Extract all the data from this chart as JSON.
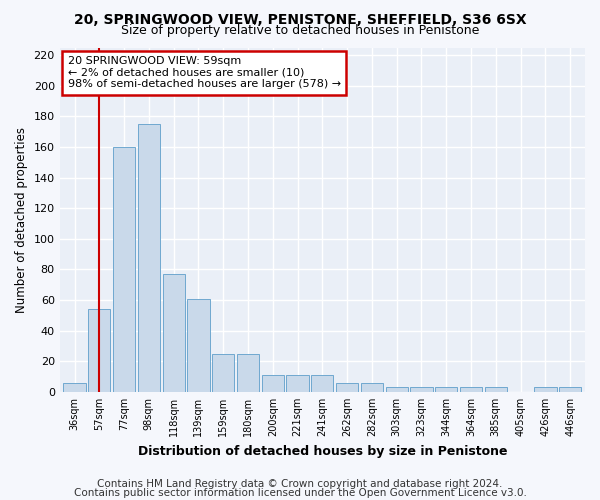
{
  "title": "20, SPRINGWOOD VIEW, PENISTONE, SHEFFIELD, S36 6SX",
  "subtitle": "Size of property relative to detached houses in Penistone",
  "xlabel": "Distribution of detached houses by size in Penistone",
  "ylabel": "Number of detached properties",
  "bar_values": [
    6,
    54,
    160,
    175,
    77,
    61,
    25,
    25,
    11,
    11,
    11,
    6,
    6,
    3,
    3,
    3,
    3,
    3,
    0,
    3,
    3
  ],
  "bar_labels": [
    "36sqm",
    "57sqm",
    "77sqm",
    "98sqm",
    "118sqm",
    "139sqm",
    "159sqm",
    "180sqm",
    "200sqm",
    "221sqm",
    "241sqm",
    "262sqm",
    "282sqm",
    "303sqm",
    "323sqm",
    "344sqm",
    "364sqm",
    "385sqm",
    "405sqm",
    "426sqm",
    "446sqm"
  ],
  "ylim": [
    0,
    225
  ],
  "yticks": [
    0,
    20,
    40,
    60,
    80,
    100,
    120,
    140,
    160,
    180,
    200,
    220
  ],
  "bar_color": "#c9d9ea",
  "bar_edge_color": "#6fa8d0",
  "red_line_index": 1,
  "annotation_box_text": "20 SPRINGWOOD VIEW: 59sqm\n← 2% of detached houses are smaller (10)\n98% of semi-detached houses are larger (578) →",
  "red_line_color": "#cc0000",
  "box_edge_color": "#cc0000",
  "footer_line1": "Contains HM Land Registry data © Crown copyright and database right 2024.",
  "footer_line2": "Contains public sector information licensed under the Open Government Licence v3.0.",
  "bg_color": "#eaeff7",
  "grid_color": "#ffffff",
  "title_fontsize": 10,
  "subtitle_fontsize": 9,
  "annotation_fontsize": 8,
  "footer_fontsize": 7.5
}
